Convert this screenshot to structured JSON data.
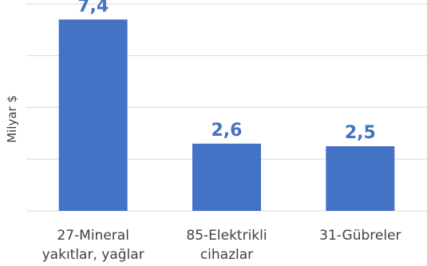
{
  "chart_data": {
    "type": "bar",
    "categories": [
      [
        "27-Mineral",
        "yakıtlar, yağlar"
      ],
      [
        "85-Elektrikli",
        "cihazlar"
      ],
      [
        "31-Gübreler"
      ]
    ],
    "values": [
      7.4,
      2.6,
      2.5
    ],
    "data_labels": [
      "7,4",
      "2,6",
      "2,5"
    ],
    "ylabel": "Milyar $",
    "xlabel": "",
    "ylim": [
      0,
      8
    ],
    "grid": true,
    "legend": "none",
    "bar_color": "#4472c4",
    "label_color": "#4472c4"
  }
}
